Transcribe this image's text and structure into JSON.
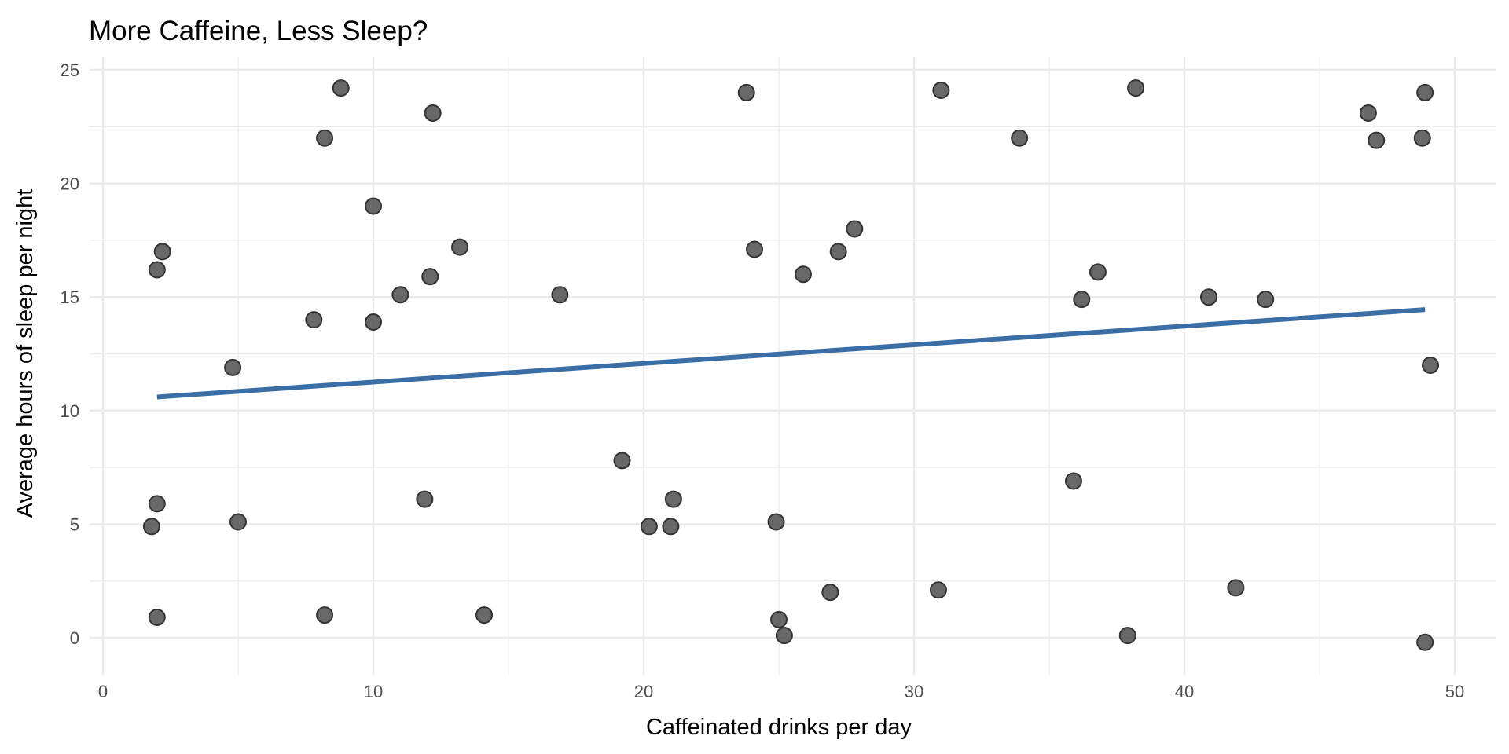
{
  "chart_data": {
    "type": "scatter",
    "title": "More Caffeine, Less Sleep?",
    "xlabel": "Caffeinated drinks per day",
    "ylabel": "Average hours of sleep per night",
    "xlim": [
      -0.5,
      51.5
    ],
    "ylim": [
      -1.3,
      25.4
    ],
    "x_ticks": [
      0,
      10,
      20,
      30,
      40,
      50
    ],
    "y_ticks": [
      0,
      5,
      10,
      15,
      20,
      25
    ],
    "grid": true,
    "legend": "none",
    "point_color": "#4d4d4d",
    "trend_color": "#3a6ea5",
    "points": [
      {
        "x": 8.8,
        "y": 24.2
      },
      {
        "x": 8.2,
        "y": 22.0
      },
      {
        "x": 12.2,
        "y": 23.1
      },
      {
        "x": 10.0,
        "y": 19.0
      },
      {
        "x": 2.2,
        "y": 17.0
      },
      {
        "x": 2.0,
        "y": 16.2
      },
      {
        "x": 13.2,
        "y": 17.2
      },
      {
        "x": 11.0,
        "y": 15.1
      },
      {
        "x": 12.1,
        "y": 15.9
      },
      {
        "x": 7.8,
        "y": 14.0
      },
      {
        "x": 10.0,
        "y": 13.9
      },
      {
        "x": 4.8,
        "y": 11.9
      },
      {
        "x": 16.9,
        "y": 15.1
      },
      {
        "x": 23.8,
        "y": 24.0
      },
      {
        "x": 31.0,
        "y": 24.1
      },
      {
        "x": 38.2,
        "y": 24.2
      },
      {
        "x": 33.9,
        "y": 22.0
      },
      {
        "x": 24.1,
        "y": 17.1
      },
      {
        "x": 25.9,
        "y": 16.0
      },
      {
        "x": 27.2,
        "y": 17.0
      },
      {
        "x": 27.8,
        "y": 18.0
      },
      {
        "x": 36.8,
        "y": 16.1
      },
      {
        "x": 36.2,
        "y": 14.9
      },
      {
        "x": 40.9,
        "y": 15.0
      },
      {
        "x": 43.0,
        "y": 14.9
      },
      {
        "x": 46.8,
        "y": 23.1
      },
      {
        "x": 48.9,
        "y": 24.0
      },
      {
        "x": 47.1,
        "y": 21.9
      },
      {
        "x": 48.8,
        "y": 22.0
      },
      {
        "x": 49.1,
        "y": 12.0
      },
      {
        "x": 2.0,
        "y": 5.9
      },
      {
        "x": 1.8,
        "y": 4.9
      },
      {
        "x": 5.0,
        "y": 5.1
      },
      {
        "x": 2.0,
        "y": 0.9
      },
      {
        "x": 8.2,
        "y": 1.0
      },
      {
        "x": 11.9,
        "y": 6.1
      },
      {
        "x": 14.1,
        "y": 1.0
      },
      {
        "x": 19.2,
        "y": 7.8
      },
      {
        "x": 20.2,
        "y": 4.9
      },
      {
        "x": 21.0,
        "y": 4.9
      },
      {
        "x": 21.1,
        "y": 6.1
      },
      {
        "x": 24.9,
        "y": 5.1
      },
      {
        "x": 25.0,
        "y": 0.8
      },
      {
        "x": 25.2,
        "y": 0.1
      },
      {
        "x": 26.9,
        "y": 2.0
      },
      {
        "x": 30.9,
        "y": 2.1
      },
      {
        "x": 35.9,
        "y": 6.9
      },
      {
        "x": 37.9,
        "y": 0.1
      },
      {
        "x": 41.9,
        "y": 2.2
      },
      {
        "x": 48.9,
        "y": -0.2
      }
    ],
    "trend_line": {
      "x": [
        2.0,
        48.9
      ],
      "y": [
        10.6,
        14.45
      ]
    }
  }
}
